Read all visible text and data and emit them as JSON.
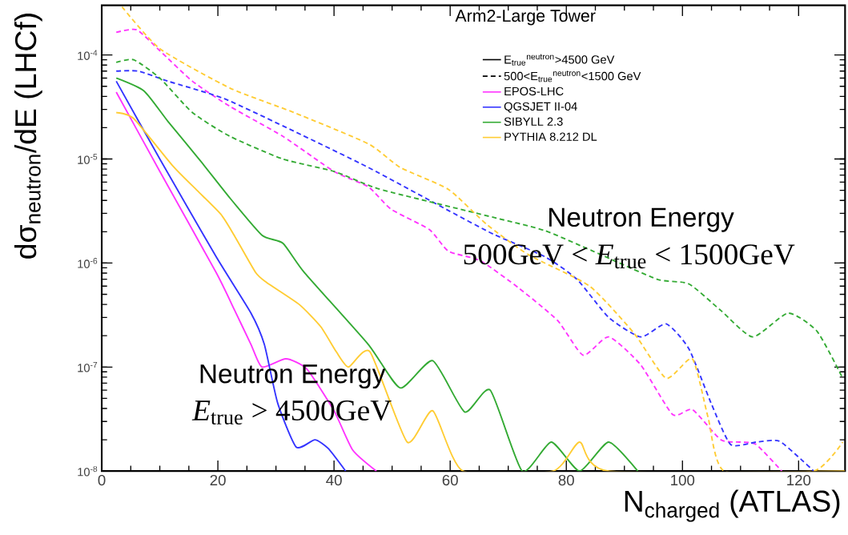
{
  "chart_data": {
    "type": "line",
    "title": "Arm2-Large Tower",
    "xlabel": "N$_{charged}$ (ATLAS)",
    "ylabel": "dσ$_{neutron}$/dE (LHCf)",
    "annotations": [
      "E$_{true}$$^{neutron}$>4500 GeV",
      "500<E$_{true}$$^{neutron}$<1500 GeV",
      "Neutron Energy",
      "500GeV < *E*$_{true}$ < 1500GeV",
      "Neutron Energy",
      "*E*$_{true}$ > 4500GeV"
    ],
    "log": "y",
    "legend": "top",
    "marker": "none",
    "line_style": "solid",
    "xlim": [
      0,
      128
    ],
    "xticks": [
      0,
      20,
      40,
      60,
      80,
      100,
      120
    ],
    "ylim": [
      1e-08,
      0.0003
    ],
    "yticks": [
      {
        "value": 1e-08,
        "label": "10$^{-8}$"
      },
      {
        "value": 1e-07,
        "label": "10$^{-7}$"
      },
      {
        "value": 1e-06,
        "label": "10$^{-6}$"
      },
      {
        "value": 1e-05,
        "label": "10$^{-5}$"
      },
      {
        "value": 0.0001,
        "label": "10$^{-4}$"
      }
    ],
    "series": [
      {
        "name": "EPOS-LHC",
        "color": "#ff33ff",
        "x": [
          2.5,
          10,
          19.7,
          22.9,
          25.7,
          27.6,
          31.7,
          35.3,
          40,
          43.2,
          47.3
        ],
        "values": [
          4.4e-05,
          7.6e-06,
          8.1e-07,
          3.5e-07,
          1.65e-07,
          1e-07,
          1.2e-07,
          9.6e-08,
          3.8e-08,
          1.6e-08,
          1e-08
        ]
      },
      {
        "name": "QGSJET II-04",
        "color": "#3333ff",
        "x": [
          2.5,
          10,
          19.7,
          25.7,
          28,
          30.3,
          33.5,
          36.7,
          39,
          42
        ],
        "values": [
          5.6e-05,
          1e-05,
          1.15e-06,
          3.3e-07,
          1.65e-07,
          4.5e-08,
          1.7e-08,
          2e-08,
          1.65e-08,
          1e-08
        ]
      },
      {
        "name": "SIBYLL 2.3",
        "color": "#33aa33",
        "x": [
          2.5,
          7.3,
          11.4,
          17,
          22.1,
          27.6,
          31.2,
          34.9,
          45.9,
          51.4,
          57,
          62.5,
          66.9,
          72.4,
          77.4,
          82.3,
          87.3,
          92.3
        ],
        "values": [
          6e-05,
          4.5e-05,
          2.3e-05,
          9.6e-06,
          4.2e-06,
          1.85e-06,
          1.55e-06,
          8.1e-07,
          1.65e-07,
          6.3e-08,
          1.15e-07,
          3.7e-08,
          6e-08,
          1e-08,
          1.9e-08,
          1e-08,
          1.9e-08,
          1e-08
        ]
      },
      {
        "name": "PYTHIA 8.212 DL",
        "color": "#ffcc33",
        "x": [
          2.5,
          5.5,
          12.3,
          16.4,
          20.5,
          22.8,
          26.5,
          28.4,
          34,
          37.7,
          40.4,
          42.5,
          46.2,
          52.6,
          57,
          62.2,
          77.7,
          82.3,
          87.3,
          128
        ],
        "values": [
          2.8e-05,
          2.45e-05,
          8.5e-06,
          5e-06,
          2.95e-06,
          1.85e-06,
          8.1e-07,
          6.5e-07,
          4e-07,
          2.45e-07,
          1.4e-07,
          1e-07,
          1.4e-07,
          1.9e-08,
          3.8e-08,
          1e-08,
          1e-08,
          1.9e-08,
          1e-08,
          1e-08
        ]
      },
      {
        "color": "#ff33ff",
        "line_style": "dashed",
        "x": [
          2.5,
          6,
          10,
          15.6,
          22.1,
          31.2,
          40,
          45.9,
          49.8,
          56.4,
          59.7,
          65.2,
          71.9,
          78.5,
          82.9,
          87.3,
          92.8,
          98.3,
          101.7,
          106.6,
          110,
          112.7,
          117.1
        ],
        "values": [
          0.000165,
          0.000175,
          0.00011,
          5.6e-05,
          3.2e-05,
          1.65e-05,
          7.6e-06,
          5.4e-06,
          3.3e-06,
          2.1e-06,
          1.3e-06,
          1.05e-06,
          5.7e-07,
          2.8e-07,
          1.3e-07,
          1.95e-07,
          1.05e-07,
          3.5e-08,
          3.9e-08,
          2e-08,
          1.9e-08,
          1.8e-08,
          1e-08
        ]
      },
      {
        "color": "#3333ff",
        "line_style": "dashed",
        "x": [
          2.5,
          6.3,
          11.4,
          21.1,
          33.1,
          45.9,
          59.7,
          67.4,
          76.3,
          81.8,
          87.3,
          92.8,
          97.2,
          101.1,
          105,
          108.3,
          112.7,
          116.6,
          120.4,
          122.6
        ],
        "values": [
          7e-05,
          7e-05,
          5.6e-05,
          3.8e-05,
          1.85e-05,
          8.3e-06,
          3.2e-06,
          1.9e-06,
          1.15e-06,
          7e-07,
          3e-07,
          1.95e-07,
          2.6e-07,
          1.5e-07,
          4.4e-08,
          1.8e-08,
          1.9e-08,
          1.95e-08,
          1.3e-08,
          1e-08
        ]
      },
      {
        "color": "#33aa33",
        "line_style": "dashed",
        "x": [
          2.5,
          5.5,
          10,
          15.6,
          22.1,
          31.2,
          40,
          45.9,
          49.8,
          68,
          76.3,
          84.6,
          95.6,
          101.1,
          106.6,
          112.1,
          118.2,
          123.2,
          127.6
        ],
        "values": [
          8.5e-05,
          9e-05,
          6e-05,
          2.8e-05,
          1.65e-05,
          1e-05,
          7.6e-06,
          5.6e-06,
          4.8e-06,
          2.7e-06,
          2.05e-06,
          1.3e-06,
          7e-07,
          6.3e-07,
          3.5e-07,
          1.95e-07,
          3.3e-07,
          2.2e-07,
          7.8e-08
        ]
      },
      {
        "color": "#ffcc33",
        "line_style": "dashed",
        "x": [
          3.5,
          10,
          22.1,
          33.1,
          45.9,
          51.4,
          59.7,
          66.3,
          73.5,
          84,
          91.7,
          97.2,
          101.7,
          104.4,
          107.2,
          122.6,
          127.6
        ],
        "values": [
          0.00029,
          0.000115,
          4.8e-05,
          2.8e-05,
          1.4e-05,
          8.3e-06,
          5.1e-06,
          2.35e-06,
          1.2e-06,
          6e-07,
          2.1e-07,
          7.8e-08,
          1.2e-07,
          3.3e-08,
          1e-08,
          1e-08,
          1.9e-08
        ]
      }
    ]
  }
}
